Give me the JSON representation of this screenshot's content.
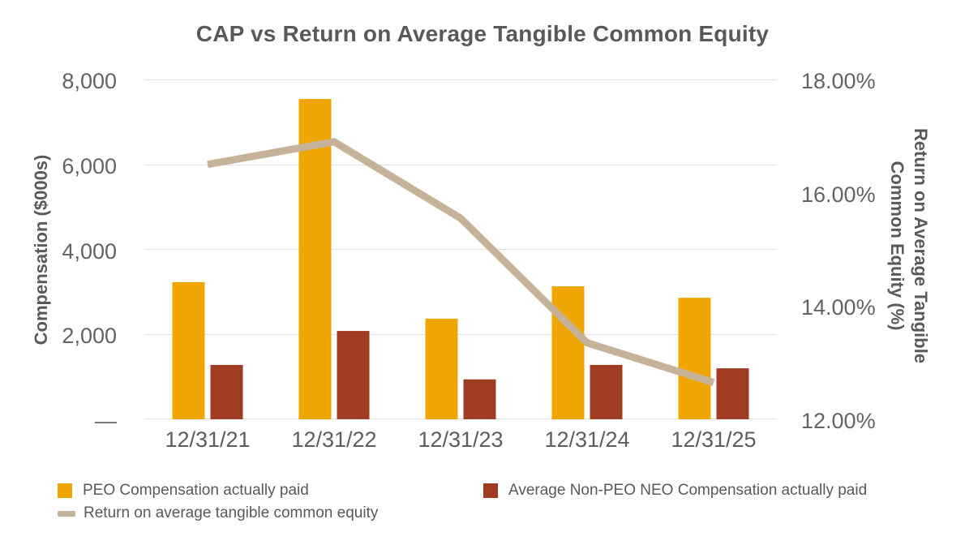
{
  "chart_data": {
    "type": "combo-bar-line",
    "title": "CAP vs Return on Average Tangible Common Equity",
    "categories": [
      "12/31/21",
      "12/31/22",
      "12/31/23",
      "12/31/24",
      "12/31/25"
    ],
    "series": [
      {
        "name": "PEO Compensation actually paid",
        "type": "bar",
        "axis": "left",
        "color": "#F0A602",
        "values": [
          3230,
          7540,
          2370,
          3130,
          2860
        ]
      },
      {
        "name": "Average Non-PEO NEO Compensation actually paid",
        "type": "bar",
        "axis": "left",
        "color": "#A03C22",
        "values": [
          1280,
          2080,
          940,
          1280,
          1200
        ]
      },
      {
        "name": "Return on average tangible common equity",
        "type": "line",
        "axis": "right",
        "color": "#C6B299",
        "values": [
          16.5,
          16.9,
          15.55,
          13.35,
          12.65
        ]
      }
    ],
    "left_axis": {
      "label": "Compensation ($000s)",
      "range": [
        0,
        8000
      ],
      "tick_labels": [
        "8,000",
        "6,000",
        "4,000",
        "2,000",
        "—"
      ]
    },
    "right_axis": {
      "label_lines": [
        "Return on Average Tangible",
        "Common Equity (%)"
      ],
      "range": [
        12,
        18
      ],
      "tick_labels": [
        "18.00%",
        "16.00%",
        "14.00%",
        "12.00%"
      ]
    },
    "grid": true,
    "legend_position": "bottom-left"
  },
  "colors": {
    "gridline": "#e2e2e2",
    "text": "#595959"
  }
}
